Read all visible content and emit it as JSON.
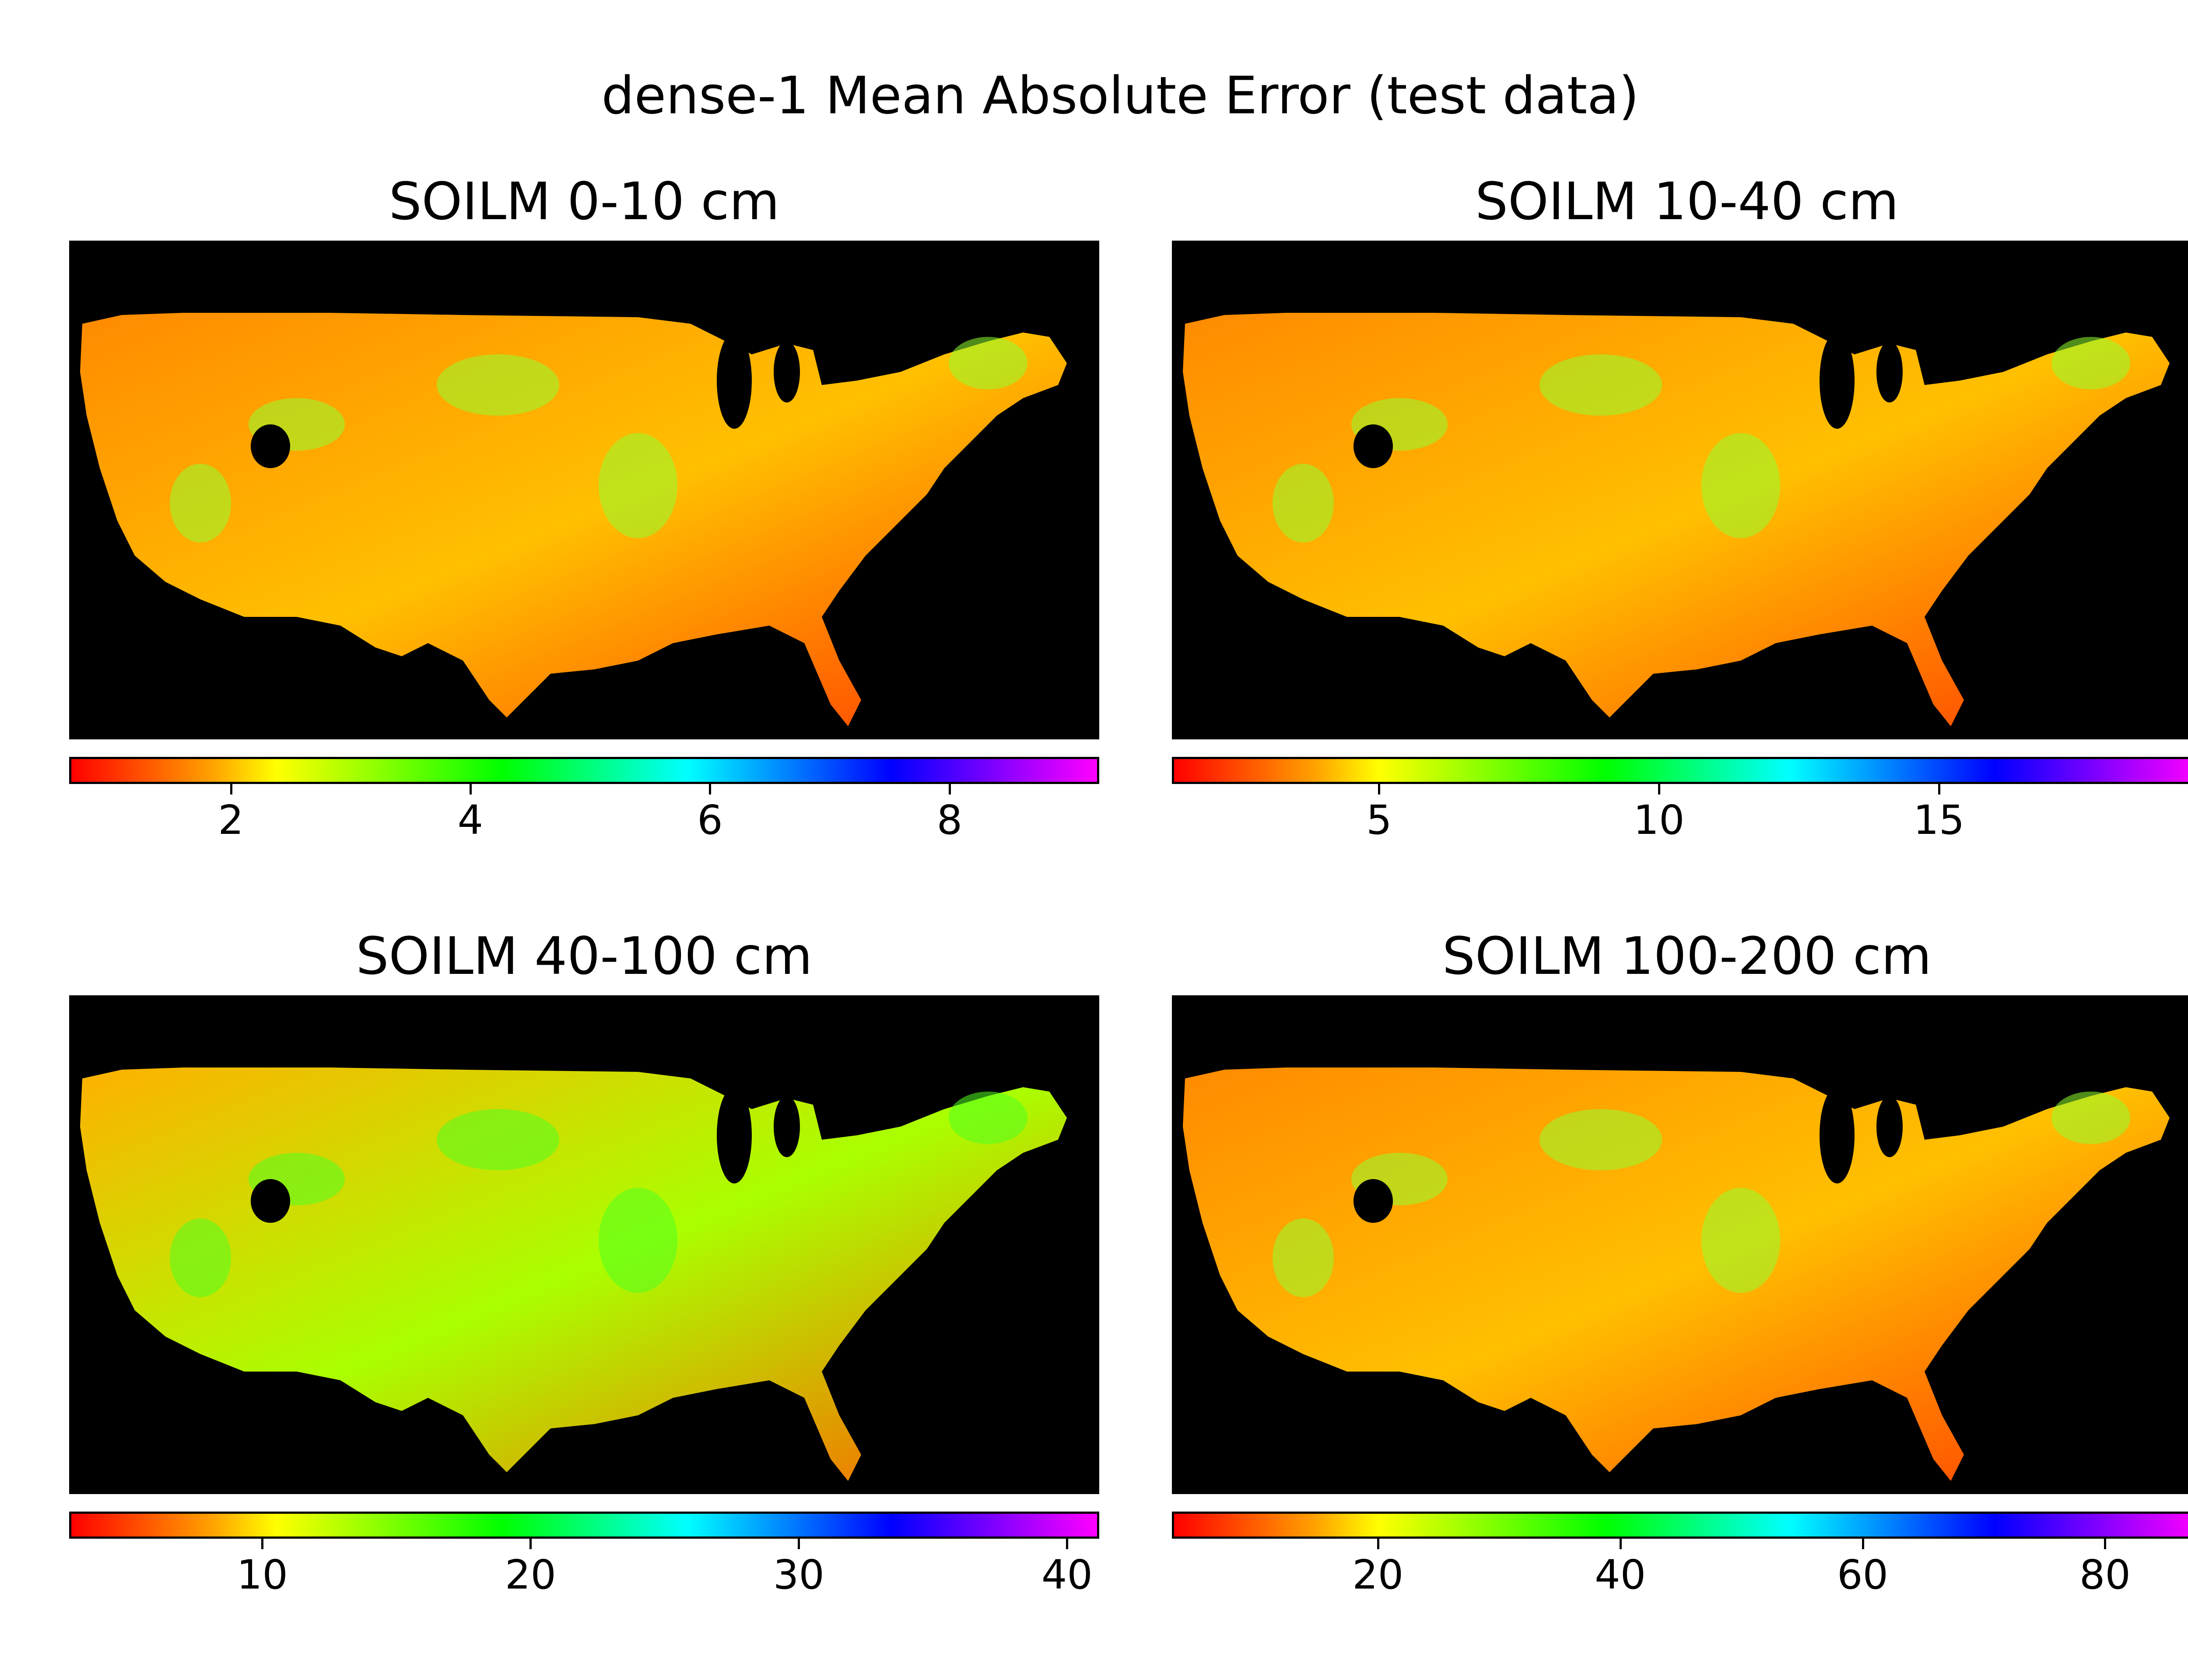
{
  "suptitle": "dense-1 Mean Absolute Error (test data)",
  "colors": {
    "background": "#000000",
    "colormap": [
      "#ff0000",
      "#ffa500",
      "#ffff00",
      "#00ff00",
      "#00ffff",
      "#0000ff",
      "#ff00ff"
    ]
  },
  "chart_data": [
    {
      "type": "heatmap",
      "title": "SOILM 0-10 cm",
      "colorbar": {
        "range": [
          0.65,
          9.25
        ],
        "ticks": [
          2,
          4,
          6,
          8
        ]
      },
      "dominant_color": "#ff6000"
    },
    {
      "type": "heatmap",
      "title": "SOILM 10-40 cm",
      "colorbar": {
        "range": [
          1.3,
          19.7
        ],
        "ticks": [
          5,
          10,
          15
        ]
      },
      "dominant_color": "#ff9a00"
    },
    {
      "type": "heatmap",
      "title": "SOILM 40-100 cm",
      "colorbar": {
        "range": [
          2.8,
          41.2
        ],
        "ticks": [
          10,
          20,
          30,
          40
        ]
      },
      "dominant_color": "#c8ff00"
    },
    {
      "type": "heatmap",
      "title": "SOILM 100-200 cm",
      "colorbar": {
        "range": [
          3.0,
          88.0
        ],
        "ticks": [
          20,
          40,
          60,
          80
        ]
      },
      "dominant_color": "#ff7a00"
    }
  ]
}
